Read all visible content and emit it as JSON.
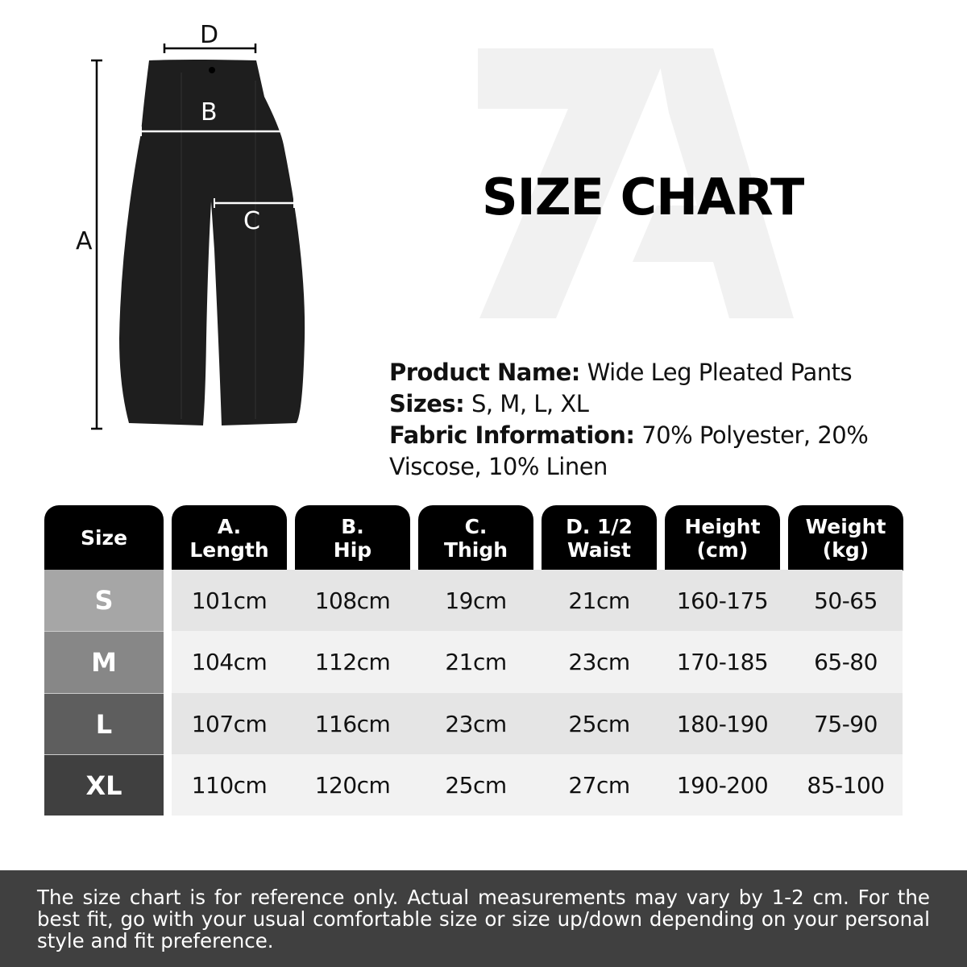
{
  "watermark": "7A",
  "title": "SIZE CHART",
  "diagram": {
    "labels": {
      "a": "A",
      "b": "B",
      "c": "C",
      "d": "D"
    }
  },
  "product": {
    "name_label": "Product Name:",
    "name": "Wide Leg Pleated Pants",
    "sizes_label": "Sizes:",
    "sizes": "S, M, L, XL",
    "fabric_label": "Fabric Information:",
    "fabric": "70% Polyester, 20% Viscose, 10% Linen"
  },
  "table": {
    "headers": [
      "Size",
      "A.\nLength",
      "B.\nHip",
      "C.\nThigh",
      "D. 1/2\nWaist",
      "Height\n(cm)",
      "Weight\n(kg)"
    ],
    "rows": [
      {
        "size": "S",
        "values": [
          "101cm",
          "108cm",
          "19cm",
          "21cm",
          "160-175",
          "50-65"
        ]
      },
      {
        "size": "M",
        "values": [
          "104cm",
          "112cm",
          "21cm",
          "23cm",
          "170-185",
          "65-80"
        ]
      },
      {
        "size": "L",
        "values": [
          "107cm",
          "116cm",
          "23cm",
          "25cm",
          "180-190",
          "75-90"
        ]
      },
      {
        "size": "XL",
        "values": [
          "110cm",
          "120cm",
          "25cm",
          "27cm",
          "190-200",
          "85-100"
        ]
      }
    ],
    "size_colors": [
      "#a6a6a6",
      "#878787",
      "#5e5e5e",
      "#404040"
    ],
    "row_colors": [
      "#e5e5e5",
      "#f2f2f2"
    ]
  },
  "footer": "The size chart is for reference only. Actual measurements may vary by 1-2 cm. For the best fit, go with your usual comfortable size or size up/down depending on your personal style and fit preference."
}
